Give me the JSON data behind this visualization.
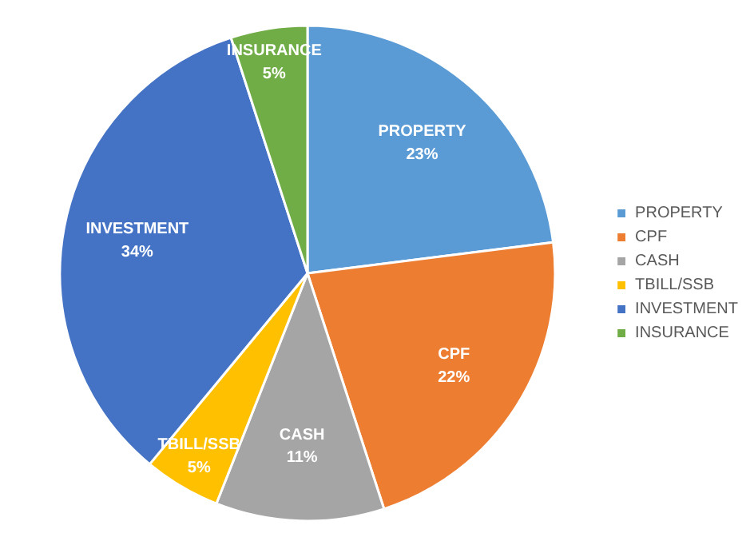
{
  "chart_data": {
    "type": "pie",
    "categories": [
      "PROPERTY",
      "CPF",
      "CASH",
      "TBILL/SSB",
      "INVESTMENT",
      "INSURANCE"
    ],
    "values": [
      23,
      22,
      11,
      5,
      34,
      5
    ],
    "colors": [
      "#5b9bd5",
      "#ed7d31",
      "#a5a5a5",
      "#ffc000",
      "#4472c4",
      "#70ad47"
    ],
    "value_labels": [
      "23%",
      "22%",
      "11%",
      "5%",
      "34%",
      "5%"
    ],
    "legend": "right"
  }
}
